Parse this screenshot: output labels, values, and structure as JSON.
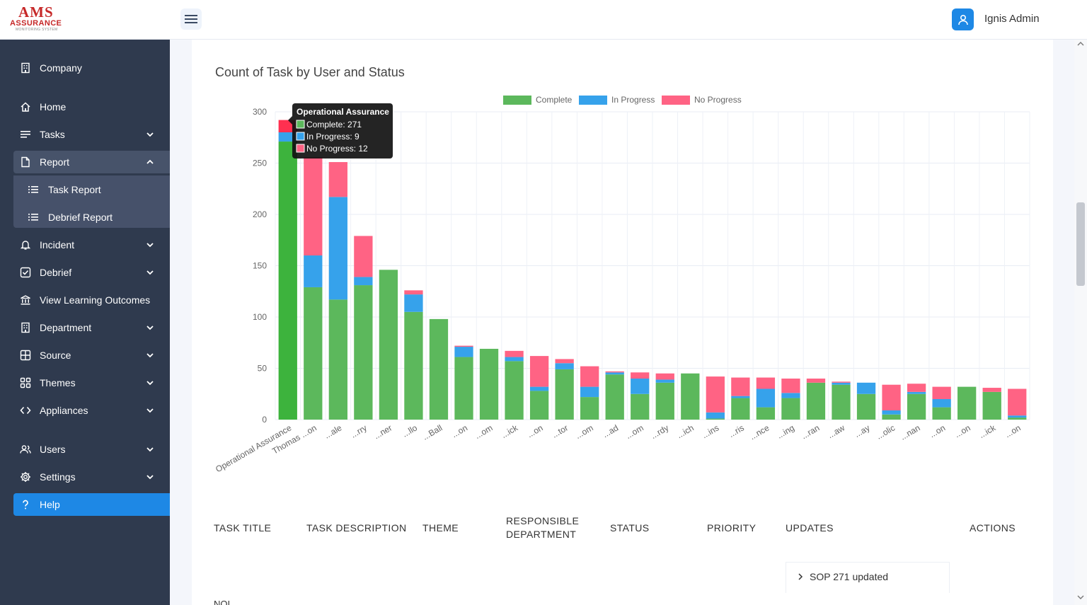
{
  "brand": {
    "name": "AMS",
    "sub": "ASSURANCE",
    "tagline": "MONITORING SYSTEM"
  },
  "header": {
    "user_name": "Ignis Admin"
  },
  "sidebar": {
    "items": [
      {
        "label": "Company",
        "icon": "building-icon"
      },
      {
        "label": "Home",
        "icon": "home-icon"
      },
      {
        "label": "Tasks",
        "icon": "tasks-icon"
      },
      {
        "label": "Report",
        "icon": "file-icon"
      },
      {
        "label": "Task Report",
        "icon": "list-icon"
      },
      {
        "label": "Debrief Report",
        "icon": "list-icon"
      },
      {
        "label": "Incident",
        "icon": "bell-icon"
      },
      {
        "label": "Debrief",
        "icon": "checkbox-icon"
      },
      {
        "label": "View Learning Outcomes",
        "icon": "bank-icon"
      },
      {
        "label": "Department",
        "icon": "building-icon"
      },
      {
        "label": "Source",
        "icon": "grid-icon"
      },
      {
        "label": "Themes",
        "icon": "apps-icon"
      },
      {
        "label": "Appliances",
        "icon": "code-icon"
      },
      {
        "label": "Users",
        "icon": "users-icon"
      },
      {
        "label": "Settings",
        "icon": "gear-icon"
      },
      {
        "label": "Help",
        "icon": "help-icon"
      }
    ]
  },
  "colors": {
    "complete": "#5cb85c",
    "in_progress": "#36a2eb",
    "no_progress": "#ff6384",
    "accent": "#1e88e5",
    "sidebar": "#2f3a4e"
  },
  "chart_data": {
    "type": "bar",
    "stacked": true,
    "title": "Count of Task by User and Status",
    "legend": [
      "Complete",
      "In Progress",
      "No Progress"
    ],
    "legend_position": "top",
    "ylim": [
      0,
      300
    ],
    "yticks": [
      0,
      50,
      100,
      150,
      200,
      250,
      300
    ],
    "categories": [
      "Operational Assurance",
      "Thomas ...on",
      "...ale",
      "...rry",
      "...ner",
      "...llo",
      "...Ball",
      "...on",
      "...om",
      "...ick",
      "...on",
      "...tor",
      "...om",
      "...ad",
      "...om",
      "...rdy",
      "...ich",
      "...ins",
      "...ris",
      "...nce",
      "...ing",
      "...ran",
      "...aw",
      "...ay",
      "...olic",
      "...nan",
      "...on",
      "...on",
      "...ick",
      "...on"
    ],
    "series": [
      {
        "name": "Complete",
        "values": [
          271,
          129,
          117,
          131,
          146,
          105,
          98,
          61,
          69,
          57,
          28,
          49,
          22,
          44,
          25,
          36,
          45,
          1,
          21,
          12,
          21,
          36,
          34,
          25,
          5,
          25,
          12,
          32,
          27,
          2
        ]
      },
      {
        "name": "In Progress",
        "values": [
          9,
          31,
          100,
          8,
          0,
          17,
          0,
          10,
          0,
          4,
          4,
          6,
          10,
          2,
          15,
          3,
          0,
          6,
          2,
          18,
          5,
          0,
          2,
          11,
          4,
          2,
          8,
          0,
          0,
          2
        ]
      },
      {
        "name": "No Progress",
        "values": [
          12,
          96,
          34,
          40,
          0,
          4,
          0,
          1,
          0,
          6,
          30,
          4,
          20,
          1,
          6,
          6,
          0,
          35,
          18,
          11,
          14,
          4,
          1,
          0,
          25,
          8,
          12,
          0,
          4,
          26
        ]
      }
    ],
    "tooltip": {
      "title": "Operational Assurance",
      "lines": [
        "Complete: 271",
        "In Progress: 9",
        "No Progress: 12"
      ]
    }
  },
  "table": {
    "headers": [
      "TASK TITLE",
      "TASK DESCRIPTION",
      "THEME",
      "RESPONSIBLE",
      "DEPARTMENT",
      "STATUS",
      "PRIORITY",
      "UPDATES",
      "ACTIONS"
    ],
    "first_row_title": "NOI",
    "update_item": "SOP 271 updated"
  }
}
